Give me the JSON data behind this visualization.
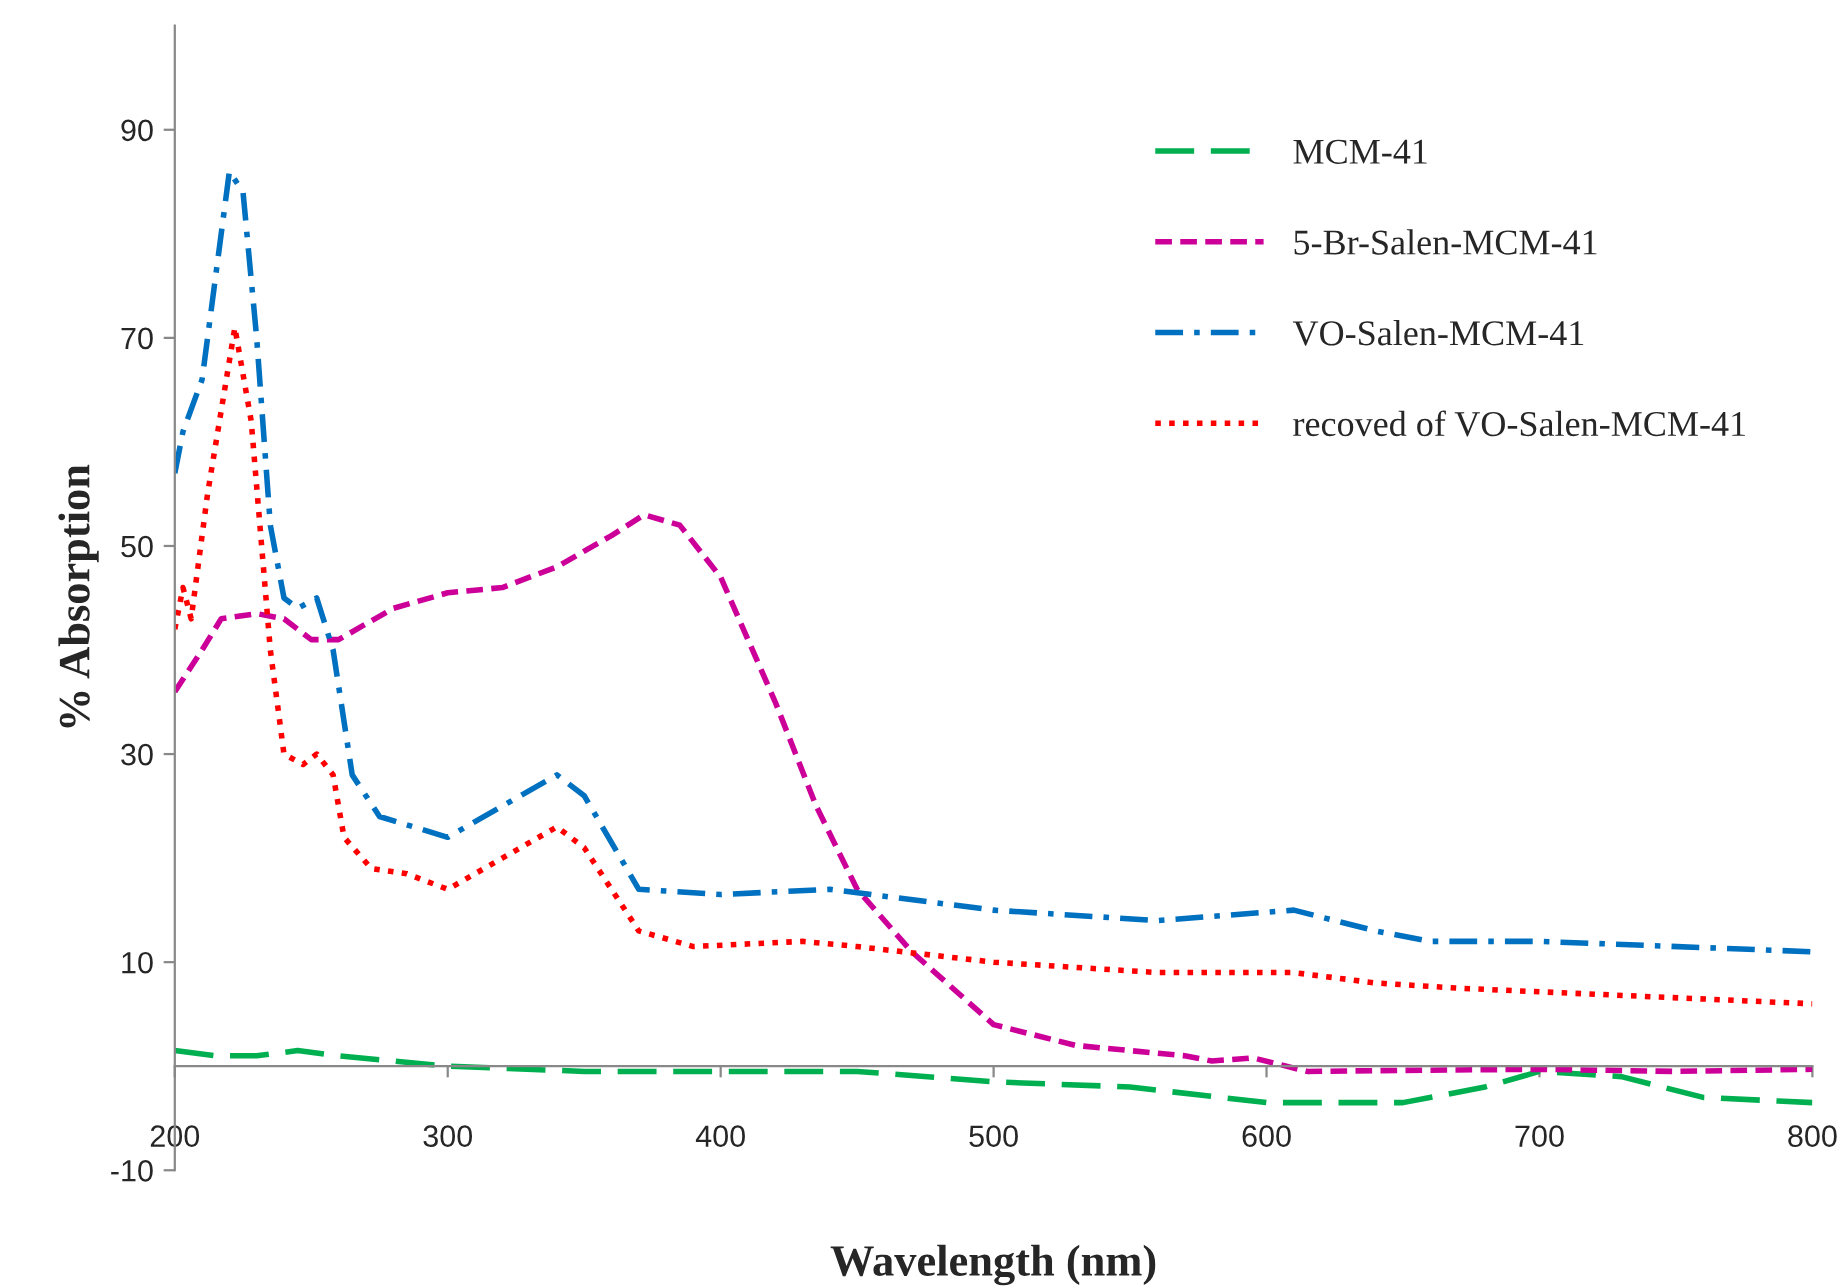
{
  "chart_data": {
    "type": "line",
    "xlabel": "Wavelength (nm)",
    "ylabel": "% Absorption",
    "xlim": [
      200,
      800
    ],
    "xticks": [
      200,
      300,
      400,
      500,
      600,
      700,
      800
    ],
    "ylim": [
      -10,
      100
    ],
    "yticks": [
      -10,
      10,
      30,
      50,
      70,
      90
    ],
    "grid": false,
    "legend": "top right",
    "marker": "none",
    "series": [
      {
        "name": "MCM-41",
        "color": "#00b050",
        "line_style": "longdash",
        "x": [
          200,
          215,
          230,
          245,
          260,
          300,
          350,
          400,
          450,
          500,
          550,
          600,
          650,
          680,
          700,
          730,
          760,
          800
        ],
        "values": [
          1.5,
          1,
          1,
          1.5,
          1,
          0,
          -0.5,
          -0.5,
          -0.5,
          -1.5,
          -2,
          -3.5,
          -3.5,
          -2,
          -0.5,
          -1,
          -3,
          -3.5
        ]
      },
      {
        "name": "5-Br-Salen-MCM-41",
        "color": "#cc0099",
        "line_style": "dashed",
        "x": [
          200,
          210,
          217,
          230,
          240,
          250,
          260,
          280,
          300,
          320,
          340,
          360,
          372,
          385,
          400,
          420,
          435,
          450,
          470,
          500,
          530,
          550,
          570,
          580,
          595,
          615,
          650,
          700,
          750,
          800
        ],
        "values": [
          36,
          40,
          43,
          43.5,
          43,
          41,
          41,
          44,
          45.5,
          46,
          48,
          51,
          53,
          52,
          47,
          35,
          25,
          17,
          11,
          4,
          2,
          1.5,
          1,
          0.5,
          0.8,
          -0.5,
          -0.4,
          -0.3,
          -0.5,
          -0.3
        ]
      },
      {
        "name": "VO-Salen-MCM-41",
        "color": "#0070c0",
        "line_style": "dashdot",
        "x": [
          200,
          203,
          210,
          215,
          220,
          225,
          230,
          235,
          240,
          245,
          252,
          258,
          265,
          275,
          300,
          320,
          340,
          350,
          370,
          400,
          440,
          500,
          560,
          610,
          640,
          660,
          700,
          800
        ],
        "values": [
          57,
          61,
          66,
          76,
          86,
          84,
          70,
          52,
          45,
          44,
          45,
          40,
          28,
          24,
          22,
          25,
          28,
          26,
          17,
          16.5,
          17,
          15,
          14,
          15,
          13,
          12,
          12,
          11
        ]
      },
      {
        "name": "recoved of VO-Salen-MCM-41",
        "color": "#ff0000",
        "line_style": "dotted",
        "x": [
          200,
          203,
          206,
          212,
          222,
          228,
          235,
          240,
          247,
          252,
          258,
          262,
          272,
          285,
          300,
          320,
          340,
          350,
          370,
          390,
          430,
          450,
          500,
          560,
          610,
          640,
          670,
          800
        ],
        "values": [
          42,
          46,
          43,
          55,
          71,
          62,
          40,
          30,
          29,
          30,
          28,
          22,
          19,
          18.5,
          17,
          20,
          23,
          21,
          13,
          11.5,
          12,
          11.5,
          10,
          9,
          9,
          8,
          7.5,
          6
        ]
      }
    ]
  }
}
